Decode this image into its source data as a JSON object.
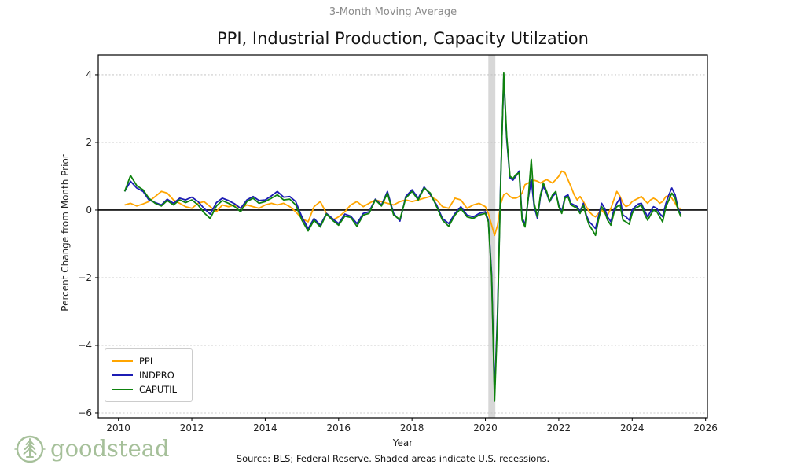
{
  "page": {
    "suptitle": "3-Month Moving Average",
    "title": "PPI, Industrial Production, Capacity Utilzation",
    "source_note": "Source: BLS; Federal Reserve. Shaded areas indicate U.S. recessions.",
    "brand": {
      "name": "goodstead",
      "color": "#a6c09a"
    }
  },
  "chart_data": {
    "type": "line",
    "title": "PPI, Industrial Production, Capacity Utilzation",
    "subtitle": "3-Month Moving Average",
    "xlabel": "Year",
    "ylabel": "Percent Change from Month Prior",
    "xlim": [
      2009.45,
      2026.05
    ],
    "ylim": [
      -6.14,
      4.58
    ],
    "grid": "horizontal dashed lines at y ticks",
    "legend_position": "lower-left",
    "zero_line_color": "#000000",
    "gridline_color": "#bdbdbd",
    "recession_band_color": "#d3d3d3",
    "recessions": [
      {
        "start": 2020.08,
        "end": 2020.27
      }
    ],
    "xticks": {
      "values": [
        2010,
        2012,
        2014,
        2016,
        2018,
        2020,
        2022,
        2024,
        2026
      ],
      "labels": [
        "2010",
        "2012",
        "2014",
        "2016",
        "2018",
        "2020",
        "2022",
        "2024",
        "2026"
      ]
    },
    "yticks": {
      "values": [
        4,
        2,
        0,
        -2,
        -4,
        -6
      ],
      "labels": [
        "4",
        "2",
        "0",
        "−2",
        "−4",
        "−6"
      ]
    },
    "x": [
      2010.17,
      2010.33,
      2010.5,
      2010.67,
      2010.83,
      2011,
      2011.17,
      2011.33,
      2011.5,
      2011.67,
      2011.83,
      2012,
      2012.17,
      2012.33,
      2012.5,
      2012.67,
      2012.83,
      2013,
      2013.17,
      2013.33,
      2013.5,
      2013.67,
      2013.83,
      2014,
      2014.17,
      2014.33,
      2014.5,
      2014.67,
      2014.83,
      2015,
      2015.17,
      2015.33,
      2015.5,
      2015.67,
      2015.83,
      2016,
      2016.17,
      2016.33,
      2016.5,
      2016.67,
      2016.83,
      2017,
      2017.17,
      2017.33,
      2017.5,
      2017.67,
      2017.83,
      2018,
      2018.17,
      2018.33,
      2018.5,
      2018.67,
      2018.83,
      2019,
      2019.17,
      2019.33,
      2019.5,
      2019.67,
      2019.83,
      2020,
      2020.08,
      2020.17,
      2020.25,
      2020.33,
      2020.42,
      2020.5,
      2020.58,
      2020.67,
      2020.75,
      2020.83,
      2020.92,
      2021,
      2021.08,
      2021.17,
      2021.25,
      2021.33,
      2021.42,
      2021.5,
      2021.58,
      2021.67,
      2021.75,
      2021.83,
      2021.92,
      2022,
      2022.08,
      2022.17,
      2022.25,
      2022.33,
      2022.42,
      2022.5,
      2022.58,
      2022.67,
      2022.75,
      2022.83,
      2022.92,
      2023,
      2023.08,
      2023.17,
      2023.25,
      2023.33,
      2023.42,
      2023.5,
      2023.58,
      2023.67,
      2023.75,
      2023.83,
      2023.92,
      2024,
      2024.08,
      2024.17,
      2024.25,
      2024.33,
      2024.42,
      2024.5,
      2024.58,
      2024.67,
      2024.75,
      2024.83,
      2024.92,
      2025,
      2025.08,
      2025.17,
      2025.25,
      2025.33
    ],
    "series": [
      {
        "name": "PPI",
        "color": "#ffa500",
        "values": [
          0.15,
          0.2,
          0.12,
          0.18,
          0.25,
          0.4,
          0.55,
          0.5,
          0.3,
          0.2,
          0.1,
          0.05,
          0.2,
          0.25,
          0.1,
          -0.05,
          0.15,
          0.1,
          0.15,
          0.05,
          0.15,
          0.1,
          0.05,
          0.15,
          0.2,
          0.15,
          0.2,
          0.1,
          -0.05,
          -0.25,
          -0.35,
          0.1,
          0.25,
          -0.1,
          -0.3,
          -0.2,
          -0.05,
          0.15,
          0.25,
          0.1,
          0.2,
          0.3,
          0.25,
          0.2,
          0.15,
          0.25,
          0.3,
          0.25,
          0.3,
          0.35,
          0.4,
          0.3,
          0.1,
          0.05,
          0.35,
          0.3,
          0.05,
          0.15,
          0.2,
          0.1,
          -0.1,
          -0.45,
          -0.75,
          -0.45,
          0.2,
          0.45,
          0.5,
          0.4,
          0.35,
          0.35,
          0.4,
          0.5,
          0.75,
          0.8,
          0.85,
          0.88,
          0.85,
          0.8,
          0.85,
          0.9,
          0.85,
          0.8,
          0.9,
          1.0,
          1.15,
          1.1,
          0.9,
          0.7,
          0.45,
          0.3,
          0.4,
          0.25,
          0.1,
          -0.05,
          -0.15,
          -0.2,
          -0.1,
          0.0,
          -0.1,
          -0.15,
          0.05,
          0.3,
          0.55,
          0.4,
          0.2,
          0.1,
          0.15,
          0.25,
          0.3,
          0.35,
          0.4,
          0.3,
          0.2,
          0.3,
          0.35,
          0.3,
          0.2,
          0.25,
          0.4,
          0.42,
          0.35,
          0.2,
          0.05,
          0.05
        ]
      },
      {
        "name": "INDPRO",
        "color": "#1c1cb4",
        "values": [
          0.55,
          0.85,
          0.65,
          0.55,
          0.3,
          0.22,
          0.15,
          0.32,
          0.2,
          0.35,
          0.3,
          0.38,
          0.25,
          0.05,
          -0.12,
          0.22,
          0.35,
          0.28,
          0.18,
          0.05,
          0.3,
          0.4,
          0.28,
          0.3,
          0.42,
          0.55,
          0.38,
          0.4,
          0.25,
          -0.2,
          -0.55,
          -0.25,
          -0.45,
          -0.1,
          -0.25,
          -0.4,
          -0.12,
          -0.18,
          -0.4,
          -0.1,
          -0.05,
          0.32,
          0.15,
          0.55,
          -0.1,
          -0.33,
          0.4,
          0.6,
          0.35,
          0.68,
          0.45,
          0.15,
          -0.25,
          -0.4,
          -0.1,
          0.1,
          -0.15,
          -0.2,
          -0.1,
          -0.05,
          -0.3,
          -1.9,
          -5.45,
          -3.0,
          1.1,
          3.95,
          2.1,
          0.95,
          0.88,
          1.0,
          1.15,
          -0.2,
          -0.45,
          0.35,
          0.9,
          0.1,
          -0.25,
          0.4,
          0.7,
          0.5,
          0.24,
          0.4,
          0.5,
          0.15,
          -0.05,
          0.4,
          0.45,
          0.2,
          0.15,
          0.1,
          -0.05,
          0.2,
          -0.15,
          -0.35,
          -0.45,
          -0.55,
          -0.2,
          0.2,
          0.05,
          -0.2,
          -0.35,
          0.0,
          0.2,
          0.35,
          -0.15,
          -0.2,
          -0.3,
          0.0,
          0.1,
          0.18,
          0.2,
          0.0,
          -0.2,
          -0.05,
          0.1,
          0.05,
          -0.1,
          -0.2,
          0.2,
          0.45,
          0.65,
          0.45,
          0.05,
          -0.15
        ]
      },
      {
        "name": "CAPUTIL",
        "color": "#0e820e",
        "values": [
          0.55,
          1.02,
          0.72,
          0.6,
          0.35,
          0.2,
          0.12,
          0.28,
          0.15,
          0.3,
          0.22,
          0.3,
          0.15,
          -0.08,
          -0.25,
          0.12,
          0.28,
          0.2,
          0.1,
          -0.05,
          0.25,
          0.35,
          0.2,
          0.25,
          0.35,
          0.45,
          0.3,
          0.32,
          0.15,
          -0.3,
          -0.62,
          -0.3,
          -0.5,
          -0.12,
          -0.3,
          -0.45,
          -0.18,
          -0.22,
          -0.48,
          -0.15,
          -0.1,
          0.3,
          0.12,
          0.5,
          -0.15,
          -0.28,
          0.35,
          0.55,
          0.3,
          0.65,
          0.5,
          0.1,
          -0.3,
          -0.48,
          -0.15,
          0.05,
          -0.2,
          -0.25,
          -0.15,
          -0.1,
          -0.35,
          -2.0,
          -5.65,
          -3.2,
          1.0,
          4.05,
          2.2,
          1.0,
          0.93,
          1.05,
          1.1,
          -0.3,
          -0.5,
          0.4,
          1.5,
          0.2,
          -0.2,
          0.45,
          0.8,
          0.55,
          0.25,
          0.45,
          0.55,
          0.1,
          -0.1,
          0.35,
          0.4,
          0.15,
          0.1,
          0.05,
          -0.1,
          0.15,
          -0.2,
          -0.45,
          -0.6,
          -0.75,
          -0.3,
          0.1,
          -0.05,
          -0.3,
          -0.45,
          -0.1,
          0.1,
          0.15,
          -0.3,
          -0.35,
          -0.42,
          -0.1,
          0.05,
          0.1,
          0.15,
          -0.1,
          -0.3,
          -0.15,
          0.0,
          -0.05,
          -0.2,
          -0.35,
          0.1,
          0.3,
          0.5,
          0.35,
          0.0,
          -0.2
        ]
      }
    ]
  }
}
